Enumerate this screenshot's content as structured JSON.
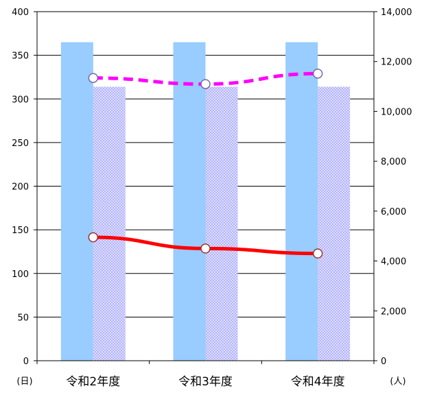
{
  "chart_data": {
    "type": "bar",
    "categories": [
      "令和2年度",
      "令和3年度",
      "令和4年度"
    ],
    "left_axis": {
      "unit_label": "(日)",
      "ylim": [
        0,
        400
      ],
      "ticks": [
        "0",
        "50",
        "100",
        "150",
        "200",
        "250",
        "300",
        "350",
        "400"
      ]
    },
    "right_axis": {
      "unit_label": "(人)",
      "ylim": [
        0,
        14000
      ],
      "ticks": [
        "0",
        "2,000",
        "4,000",
        "6,000",
        "8,000",
        "10,000",
        "12,000",
        "14,000"
      ]
    },
    "series": [
      {
        "type": "bar",
        "axis": "left",
        "values": [
          365,
          365,
          365
        ],
        "color": "#99CCFF",
        "pattern": "solid"
      },
      {
        "type": "bar",
        "axis": "left",
        "values": [
          314,
          314,
          314
        ],
        "color": "#9999FF",
        "pattern": "dotted"
      },
      {
        "type": "line",
        "axis": "left",
        "style": "dashed",
        "values": [
          324,
          317,
          329
        ],
        "color": "#FF00FF",
        "marker": "circle"
      },
      {
        "type": "line",
        "axis": "right",
        "style": "solid",
        "values": [
          4950,
          4500,
          4300
        ],
        "color": "#FF0000",
        "marker": "circle"
      }
    ],
    "grid": "horizontal",
    "legend": "none"
  }
}
